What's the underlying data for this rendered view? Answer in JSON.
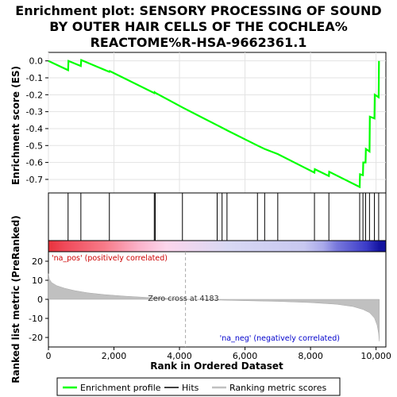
{
  "chart_data": [
    {
      "type": "line",
      "title_lines": [
        "Enrichment plot: SENSORY PROCESSING OF SOUND",
        "BY OUTER HAIR CELLS OF THE COCHLEA%",
        "REACTOME%R-HSA-9662361.1"
      ],
      "ylabel": "Enrichment score (ES)",
      "ylim": [
        -0.78,
        0.05
      ],
      "xlim": [
        0,
        10300
      ],
      "yticks": [
        "0.0",
        "-0.1",
        "-0.2",
        "-0.3",
        "-0.4",
        "-0.5",
        "-0.6",
        "-0.7"
      ],
      "ytick_values": [
        0.0,
        -0.1,
        -0.2,
        -0.3,
        -0.4,
        -0.5,
        -0.6,
        -0.7
      ],
      "grid": true,
      "series": [
        {
          "name": "Enrichment profile",
          "color": "#00ff00",
          "points": [
            [
              0,
              0.0
            ],
            [
              600,
              -0.055
            ],
            [
              610,
              0.0
            ],
            [
              990,
              -0.03
            ],
            [
              1000,
              0.005
            ],
            [
              1860,
              -0.065
            ],
            [
              1870,
              -0.06
            ],
            [
              3230,
              -0.19
            ],
            [
              3240,
              -0.185
            ],
            [
              3260,
              -0.188
            ],
            [
              4090,
              -0.275
            ],
            [
              5150,
              -0.38
            ],
            [
              5300,
              -0.395
            ],
            [
              5450,
              -0.41
            ],
            [
              6380,
              -0.5
            ],
            [
              6600,
              -0.52
            ],
            [
              7000,
              -0.55
            ],
            [
              8120,
              -0.66
            ],
            [
              8130,
              -0.64
            ],
            [
              8560,
              -0.68
            ],
            [
              8570,
              -0.655
            ],
            [
              9500,
              -0.745
            ],
            [
              9510,
              -0.67
            ],
            [
              9600,
              -0.675
            ],
            [
              9610,
              -0.6
            ],
            [
              9680,
              -0.6
            ],
            [
              9690,
              -0.52
            ],
            [
              9800,
              -0.535
            ],
            [
              9810,
              -0.33
            ],
            [
              9950,
              -0.34
            ],
            [
              9960,
              -0.2
            ],
            [
              10080,
              -0.215
            ],
            [
              10090,
              0.0
            ]
          ]
        }
      ]
    },
    {
      "type": "hits",
      "name": "Hits",
      "x": [
        600,
        990,
        1860,
        3230,
        3260,
        4090,
        5150,
        5300,
        5450,
        6380,
        6600,
        7000,
        8120,
        8560,
        9500,
        9600,
        9680,
        9800,
        9950,
        10080
      ]
    },
    {
      "type": "area",
      "ylabel": "Ranked list metric (PreRanked)",
      "xlabel": "Rank in Ordered Dataset",
      "ylim": [
        -25,
        25
      ],
      "xlim": [
        0,
        10300
      ],
      "yticks": [
        "20",
        "10",
        "0",
        "-10",
        "-20"
      ],
      "ytick_values": [
        20,
        10,
        0,
        -10,
        -20
      ],
      "xticks": [
        "0",
        "2,000",
        "4,000",
        "6,000",
        "8,000",
        "10,000"
      ],
      "xtick_values": [
        0,
        2000,
        4000,
        6000,
        8000,
        10000
      ],
      "zero_cross": 4183,
      "series": [
        {
          "name": "Ranking metric scores",
          "color": "#c0c0c0",
          "points": [
            [
              0,
              13.5
            ],
            [
              30,
              10.5
            ],
            [
              100,
              8.8
            ],
            [
              250,
              7.2
            ],
            [
              500,
              5.8
            ],
            [
              800,
              4.6
            ],
            [
              1200,
              3.4
            ],
            [
              1700,
              2.5
            ],
            [
              2300,
              1.7
            ],
            [
              3000,
              1.0
            ],
            [
              3600,
              0.5
            ],
            [
              4183,
              0.0
            ],
            [
              5000,
              -0.3
            ],
            [
              6000,
              -0.7
            ],
            [
              7000,
              -1.1
            ],
            [
              8000,
              -1.7
            ],
            [
              8800,
              -2.6
            ],
            [
              9300,
              -3.8
            ],
            [
              9600,
              -5.3
            ],
            [
              9800,
              -7.0
            ],
            [
              9950,
              -9.8
            ],
            [
              10030,
              -13.5
            ],
            [
              10080,
              -18.0
            ],
            [
              10100,
              -22.0
            ]
          ]
        }
      ]
    }
  ],
  "annotations": {
    "pos_label": "'na_pos' (positively correlated)",
    "neg_label": "'na_neg' (negatively correlated)",
    "zero_cross_label": "Zero cross at 4183"
  },
  "heatmap_bar": {
    "colors": [
      "#e8323c",
      "#f04a5a",
      "#f77a88",
      "#fbb4cc",
      "#fcd6ec",
      "#d8d8f4",
      "#c8c8f0",
      "#a8a8ea",
      "#7878dc",
      "#3c3cc8",
      "#1414a0"
    ],
    "stops": [
      0,
      500,
      1700,
      2800,
      3600,
      5500,
      7800,
      8400,
      8800,
      9700,
      10100
    ]
  },
  "legend": {
    "items": [
      {
        "label": "Enrichment profile",
        "color": "#00ff00"
      },
      {
        "label": "Hits",
        "color": "#000000"
      },
      {
        "label": "Ranking metric scores",
        "color": "#c0c0c0"
      }
    ]
  }
}
